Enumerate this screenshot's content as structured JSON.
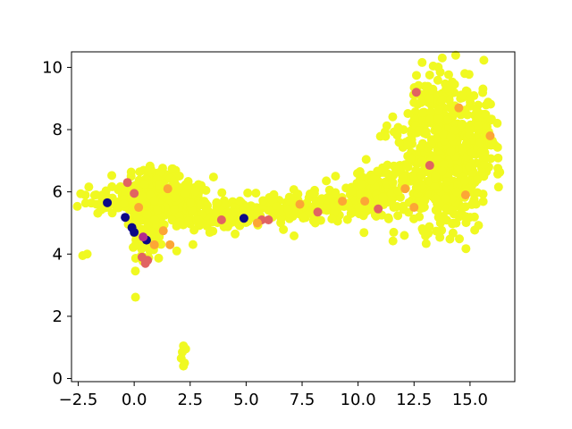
{
  "chart_data": {
    "type": "scatter",
    "title": "",
    "xlabel": "",
    "ylabel": "",
    "xlim": [
      -2.8,
      17.0
    ],
    "ylim": [
      -0.1,
      10.5
    ],
    "grid": false,
    "legend": "none",
    "colormap": "plasma",
    "x_ticks": [
      -2.5,
      0.0,
      2.5,
      5.0,
      7.5,
      10.0,
      12.5,
      15.0
    ],
    "x_tick_labels": [
      "−2.5",
      "0.0",
      "2.5",
      "5.0",
      "7.5",
      "10.0",
      "12.5",
      "15.0"
    ],
    "y_ticks": [
      0,
      2,
      4,
      6,
      8,
      10
    ],
    "y_tick_labels": [
      "0",
      "2",
      "4",
      "6",
      "8",
      "10"
    ],
    "colors": {
      "yellow": "#f0f921",
      "orange": "#fca636",
      "salmon": "#e16462",
      "magenta": "#b12a90",
      "navy": "#0d0887"
    },
    "regions": [
      {
        "name": "left-spike",
        "cx": 0.8,
        "cy": 5.9,
        "sx": 0.7,
        "sy": 0.55,
        "n": 160
      },
      {
        "name": "left-tip",
        "cx": 0.6,
        "cy": 4.5,
        "sx": 0.35,
        "sy": 0.45,
        "n": 70
      },
      {
        "name": "left-arm",
        "cx": -1.3,
        "cy": 5.7,
        "sx": 0.5,
        "sy": 0.2,
        "n": 40
      },
      {
        "name": "left-blob",
        "cx": 1.8,
        "cy": 5.6,
        "sx": 0.9,
        "sy": 0.45,
        "n": 140
      },
      {
        "name": "bridge-a",
        "cx": 4.5,
        "cy": 5.25,
        "sx": 1.2,
        "sy": 0.22,
        "n": 120
      },
      {
        "name": "bridge-b",
        "cx": 7.8,
        "cy": 5.55,
        "sx": 1.3,
        "sy": 0.25,
        "n": 120
      },
      {
        "name": "right-neck",
        "cx": 10.5,
        "cy": 5.9,
        "sx": 0.8,
        "sy": 0.4,
        "n": 110
      },
      {
        "name": "right-main",
        "cx": 13.8,
        "cy": 6.8,
        "sx": 1.1,
        "sy": 1.0,
        "n": 520
      },
      {
        "name": "right-top",
        "cx": 13.6,
        "cy": 9.1,
        "sx": 0.7,
        "sy": 0.5,
        "n": 90
      },
      {
        "name": "right-edge",
        "cx": 15.5,
        "cy": 7.8,
        "sx": 0.4,
        "sy": 0.6,
        "n": 60
      }
    ],
    "outliers": [
      {
        "x": 2.2,
        "y": 1.05,
        "c": "yellow"
      },
      {
        "x": 2.15,
        "y": 0.85,
        "c": "yellow"
      },
      {
        "x": 2.1,
        "y": 0.65,
        "c": "yellow"
      },
      {
        "x": 2.25,
        "y": 0.5,
        "c": "yellow"
      },
      {
        "x": 2.2,
        "y": 0.4,
        "c": "yellow"
      },
      {
        "x": 2.3,
        "y": 0.95,
        "c": "yellow"
      },
      {
        "x": -2.1,
        "y": 4.0,
        "c": "yellow"
      },
      {
        "x": -2.3,
        "y": 3.95,
        "c": "yellow"
      },
      {
        "x": -0.4,
        "y": 5.18,
        "c": "navy"
      },
      {
        "x": -0.1,
        "y": 4.85,
        "c": "navy"
      },
      {
        "x": 0.0,
        "y": 4.7,
        "c": "navy"
      },
      {
        "x": 0.55,
        "y": 4.45,
        "c": "navy"
      },
      {
        "x": -1.2,
        "y": 5.65,
        "c": "navy"
      },
      {
        "x": 0.4,
        "y": 4.55,
        "c": "magenta"
      },
      {
        "x": 0.5,
        "y": 3.7,
        "c": "salmon"
      },
      {
        "x": 0.6,
        "y": 3.8,
        "c": "salmon"
      },
      {
        "x": 0.35,
        "y": 3.9,
        "c": "salmon"
      },
      {
        "x": 0.9,
        "y": 4.3,
        "c": "orange"
      },
      {
        "x": 1.6,
        "y": 4.3,
        "c": "orange"
      },
      {
        "x": 1.3,
        "y": 4.75,
        "c": "orange"
      },
      {
        "x": 0.2,
        "y": 5.5,
        "c": "orange"
      },
      {
        "x": 0.0,
        "y": 5.95,
        "c": "salmon"
      },
      {
        "x": -0.3,
        "y": 6.3,
        "c": "salmon"
      },
      {
        "x": 1.5,
        "y": 6.1,
        "c": "orange"
      },
      {
        "x": 1.9,
        "y": 4.1,
        "c": "yellow"
      },
      {
        "x": 3.9,
        "y": 5.1,
        "c": "salmon"
      },
      {
        "x": 4.9,
        "y": 5.15,
        "c": "navy"
      },
      {
        "x": 5.7,
        "y": 5.1,
        "c": "salmon"
      },
      {
        "x": 6.0,
        "y": 5.1,
        "c": "salmon"
      },
      {
        "x": 5.5,
        "y": 5.0,
        "c": "orange"
      },
      {
        "x": 8.2,
        "y": 5.35,
        "c": "salmon"
      },
      {
        "x": 10.9,
        "y": 5.45,
        "c": "salmon"
      },
      {
        "x": 10.3,
        "y": 5.7,
        "c": "orange"
      },
      {
        "x": 13.2,
        "y": 6.85,
        "c": "salmon"
      },
      {
        "x": 12.6,
        "y": 9.2,
        "c": "salmon"
      },
      {
        "x": 14.5,
        "y": 8.7,
        "c": "orange"
      },
      {
        "x": 12.5,
        "y": 5.5,
        "c": "orange"
      },
      {
        "x": 15.9,
        "y": 7.8,
        "c": "orange"
      },
      {
        "x": 14.8,
        "y": 5.9,
        "c": "orange"
      },
      {
        "x": 12.1,
        "y": 6.1,
        "c": "orange"
      },
      {
        "x": 7.4,
        "y": 5.6,
        "c": "orange"
      },
      {
        "x": 9.3,
        "y": 5.7,
        "c": "orange"
      }
    ]
  }
}
